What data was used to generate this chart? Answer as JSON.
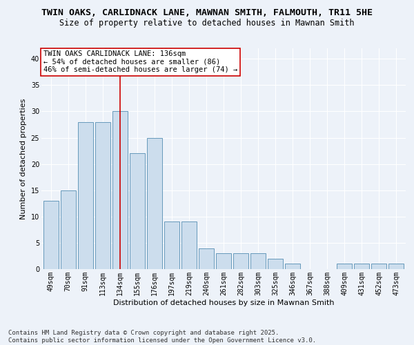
{
  "title_line1": "TWIN OAKS, CARLIDNACK LANE, MAWNAN SMITH, FALMOUTH, TR11 5HE",
  "title_line2": "Size of property relative to detached houses in Mawnan Smith",
  "xlabel": "Distribution of detached houses by size in Mawnan Smith",
  "ylabel": "Number of detached properties",
  "categories": [
    "49sqm",
    "70sqm",
    "91sqm",
    "113sqm",
    "134sqm",
    "155sqm",
    "176sqm",
    "197sqm",
    "219sqm",
    "240sqm",
    "261sqm",
    "282sqm",
    "303sqm",
    "325sqm",
    "346sqm",
    "367sqm",
    "388sqm",
    "409sqm",
    "431sqm",
    "452sqm",
    "473sqm"
  ],
  "values": [
    13,
    15,
    28,
    28,
    30,
    22,
    25,
    9,
    9,
    4,
    3,
    3,
    3,
    2,
    1,
    0,
    0,
    1,
    1,
    1,
    1
  ],
  "bar_color": "#ccdded",
  "bar_edge_color": "#6699bb",
  "highlight_index": 4,
  "highlight_line_color": "#cc0000",
  "annotation_text": "TWIN OAKS CARLIDNACK LANE: 136sqm\n← 54% of detached houses are smaller (86)\n46% of semi-detached houses are larger (74) →",
  "annotation_box_color": "#ffffff",
  "annotation_box_edge_color": "#cc0000",
  "ylim": [
    0,
    42
  ],
  "yticks": [
    0,
    5,
    10,
    15,
    20,
    25,
    30,
    35,
    40
  ],
  "footer_text": "Contains HM Land Registry data © Crown copyright and database right 2025.\nContains public sector information licensed under the Open Government Licence v3.0.",
  "background_color": "#edf2f9",
  "grid_color": "#ffffff",
  "title_fontsize": 9.5,
  "subtitle_fontsize": 8.5,
  "axis_label_fontsize": 8,
  "tick_fontsize": 7,
  "annotation_fontsize": 7.5,
  "footer_fontsize": 6.5
}
